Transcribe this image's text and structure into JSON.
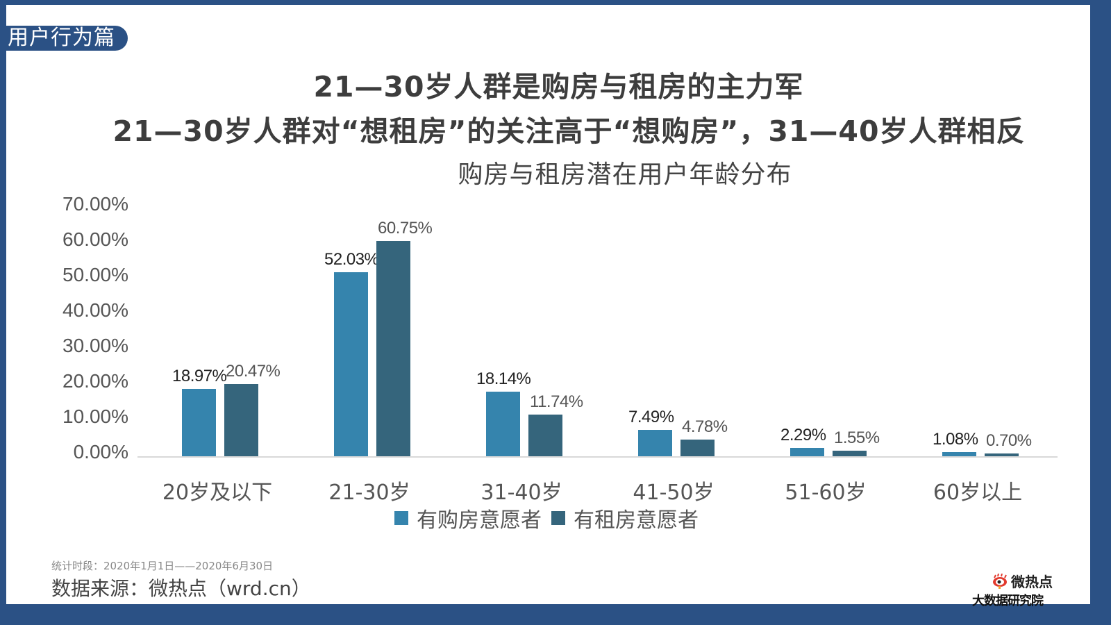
{
  "section_tag": "用户行为篇",
  "headline": {
    "line1": "21—30岁人群是购房与租房的主力军",
    "line2": "21—30岁人群对“想租房”的关注高于“想购房”，31—40岁人群相反"
  },
  "colors": {
    "frame_border": "#2b5185",
    "series_buy": "#3584ad",
    "series_rent": "#35657c"
  },
  "chart_data": {
    "type": "bar",
    "title": "购房与租房潜在用户年龄分布",
    "xlabel": "",
    "ylabel": "",
    "ylim": [
      0,
      70
    ],
    "y_ticks": [
      "70.00%",
      "60.00%",
      "50.00%",
      "40.00%",
      "30.00%",
      "20.00%",
      "10.00%",
      "0.00%"
    ],
    "grid": false,
    "legend_position": "bottom",
    "categories": [
      "20岁及以下",
      "21-30岁",
      "31-40岁",
      "41-50岁",
      "51-60岁",
      "60岁以上"
    ],
    "series": [
      {
        "name": "有购房意愿者",
        "values": [
          18.97,
          52.03,
          18.14,
          7.49,
          2.29,
          1.08
        ],
        "labels": [
          "18.97%",
          "52.03%",
          "18.14%",
          "7.49%",
          "2.29%",
          "1.08%"
        ]
      },
      {
        "name": "有租房意愿者",
        "values": [
          20.47,
          60.75,
          11.74,
          4.78,
          1.55,
          0.7
        ],
        "labels": [
          "20.47%",
          "60.75%",
          "11.74%",
          "4.78%",
          "1.55%",
          "0.70%"
        ]
      }
    ]
  },
  "footer": {
    "period": "统计时段：2020年1月1日——2020年6月30日",
    "source": "数据来源：微热点（wrd.cn）",
    "brand_name": "微热点",
    "brand_sub": "大数据研究院"
  }
}
